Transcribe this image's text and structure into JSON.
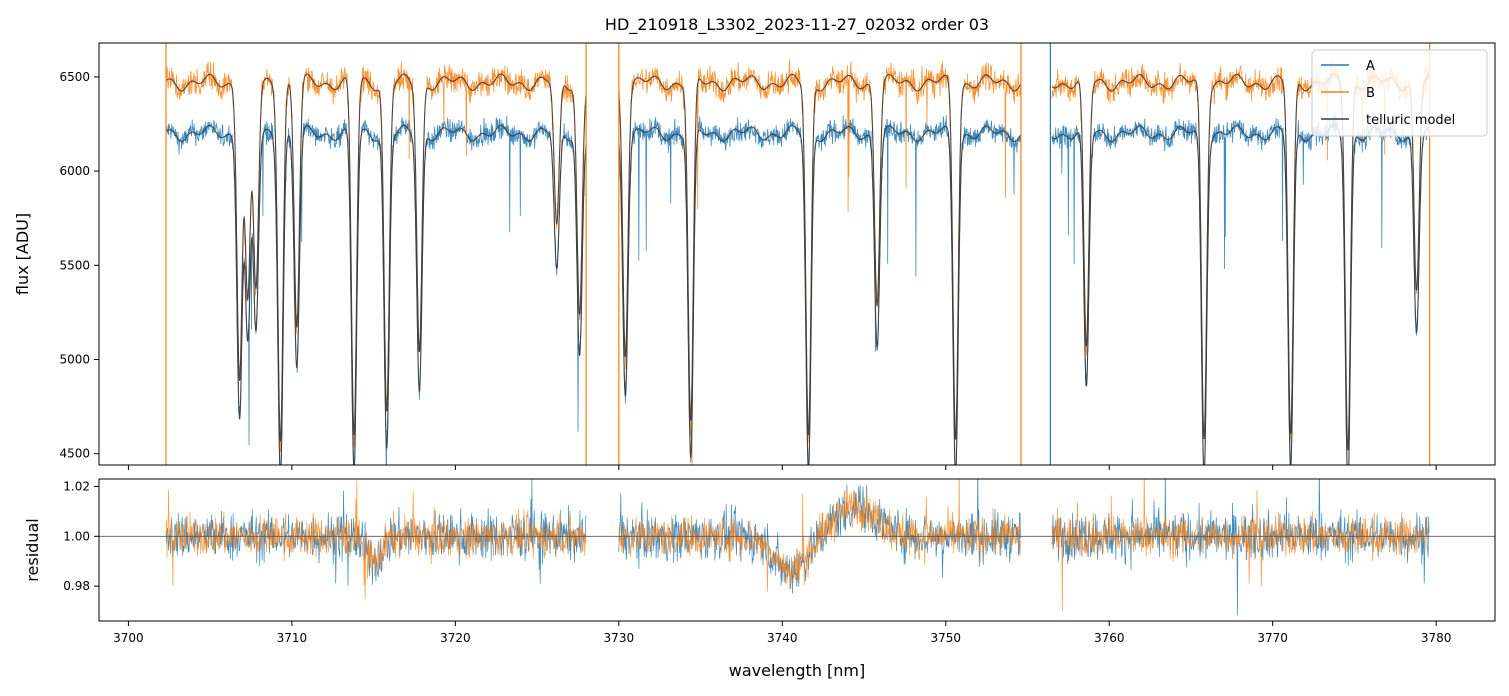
{
  "chart_data": [
    {
      "type": "line",
      "panel": "top",
      "title": "HD_210918_L3302_2023-11-27_02032  order 03",
      "xlabel": "",
      "ylabel": "flux [ADU]",
      "xlim": [
        3698.2,
        3783.6
      ],
      "ylim": [
        4440,
        6680
      ],
      "xticks": [
        3700,
        3710,
        3720,
        3730,
        3740,
        3750,
        3760,
        3770,
        3780
      ],
      "yticks": [
        4500,
        5000,
        5500,
        6000,
        6500
      ],
      "ytick_labels": [
        "4500",
        "5000",
        "5500",
        "6000",
        "6500"
      ],
      "legend_position": "top-right",
      "segments": [
        [
          3702.3,
          3728.0
        ],
        [
          3730.0,
          3754.6
        ],
        [
          3756.5,
          3779.6
        ]
      ],
      "series": [
        {
          "name": "A",
          "color": "#1f77b4",
          "continuum": 6200,
          "noise": 55
        },
        {
          "name": "B",
          "color": "#ff7f0e",
          "continuum": 6470,
          "noise": 70
        },
        {
          "name": "telluric model",
          "color": "#3a3a3a",
          "continuum": [
            6200,
            6470
          ]
        }
      ],
      "absorption_lines": [
        {
          "x": 3706.8,
          "depth": 0.24
        },
        {
          "x": 3707.3,
          "depth": 0.18
        },
        {
          "x": 3707.8,
          "depth": 0.17
        },
        {
          "x": 3709.3,
          "depth": 0.29
        },
        {
          "x": 3710.3,
          "depth": 0.2
        },
        {
          "x": 3713.8,
          "depth": 0.29
        },
        {
          "x": 3715.8,
          "depth": 0.27
        },
        {
          "x": 3717.8,
          "depth": 0.22
        },
        {
          "x": 3726.2,
          "depth": 0.12
        },
        {
          "x": 3727.6,
          "depth": 0.19
        },
        {
          "x": 3730.4,
          "depth": 0.22
        },
        {
          "x": 3734.4,
          "depth": 0.28
        },
        {
          "x": 3741.6,
          "depth": 0.29
        },
        {
          "x": 3745.8,
          "depth": 0.18
        },
        {
          "x": 3750.6,
          "depth": 0.29
        },
        {
          "x": 3758.6,
          "depth": 0.22
        },
        {
          "x": 3765.8,
          "depth": 0.29
        },
        {
          "x": 3771.1,
          "depth": 0.29
        },
        {
          "x": 3774.6,
          "depth": 0.3
        },
        {
          "x": 3778.8,
          "depth": 0.17
        }
      ],
      "vertical_spikes": [
        {
          "x": 3702.3,
          "color": "#ff7f0e"
        },
        {
          "x": 3728.0,
          "color": "#ff7f0e"
        },
        {
          "x": 3730.0,
          "color": "#ff7f0e"
        },
        {
          "x": 3754.6,
          "color": "#ff7f0e"
        },
        {
          "x": 3756.4,
          "color": "#1f77b4"
        },
        {
          "x": 3779.6,
          "color": "#ff7f0e"
        }
      ]
    },
    {
      "type": "line",
      "panel": "bottom",
      "title": "",
      "xlabel": "wavelength [nm]",
      "ylabel": "residual",
      "xlim": [
        3698.2,
        3783.6
      ],
      "ylim": [
        0.966,
        1.023
      ],
      "xticks": [
        3700,
        3710,
        3720,
        3730,
        3740,
        3750,
        3760,
        3770,
        3780
      ],
      "xtick_labels": [
        "3700",
        "3710",
        "3720",
        "3730",
        "3740",
        "3750",
        "3760",
        "3770",
        "3780"
      ],
      "yticks": [
        0.98,
        1.0,
        1.02
      ],
      "ytick_labels": [
        "0.98",
        "1.00",
        "1.02"
      ],
      "reference_line": 1.0,
      "series": [
        {
          "name": "A",
          "color": "#1f77b4",
          "center": 1.0,
          "noise": 0.0065
        },
        {
          "name": "B",
          "color": "#ff7f0e",
          "center": 1.0,
          "noise": 0.0055
        }
      ],
      "features": [
        {
          "x": 3740.5,
          "offset": -0.014,
          "width": 1.4
        },
        {
          "x": 3744.5,
          "offset": 0.012,
          "width": 1.8
        },
        {
          "x": 3715.0,
          "offset": -0.01,
          "width": 0.7
        }
      ]
    }
  ],
  "legend": {
    "items": [
      "A",
      "B",
      "telluric model"
    ]
  }
}
